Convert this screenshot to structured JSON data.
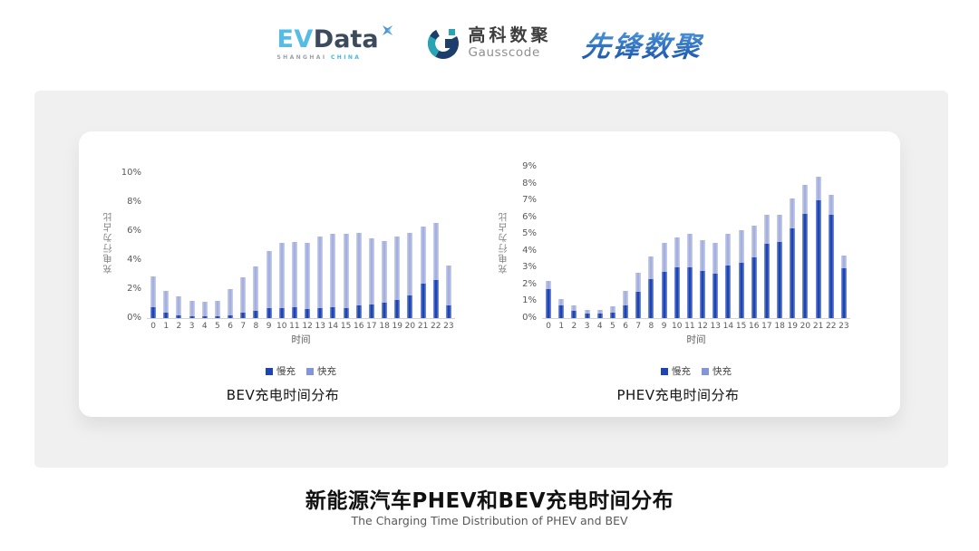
{
  "header": {
    "evdata_logo": {
      "ev": "EV",
      "data": "Data",
      "shanghai": "SHANGHAI",
      "china": "CHINA"
    },
    "gausscode_logo": {
      "name_cn": "高科数聚",
      "name_en": "Gausscode"
    },
    "xianfeng_logo": {
      "text": "先锋数聚"
    }
  },
  "chart_data": [
    {
      "type": "bar",
      "stacked": true,
      "title": "BEV充电时间分布",
      "xlabel": "时间",
      "ylabel": "充电行为占比",
      "ylim": [
        0,
        10
      ],
      "yticks": [
        "0%",
        "2%",
        "4%",
        "6%",
        "8%",
        "10%"
      ],
      "grid": false,
      "legend_position": "bottom",
      "categories": [
        0,
        1,
        2,
        3,
        4,
        5,
        6,
        7,
        8,
        9,
        10,
        11,
        12,
        13,
        14,
        15,
        16,
        17,
        18,
        19,
        20,
        21,
        22,
        23
      ],
      "series": [
        {
          "name": "慢充",
          "color": "#1c44b4",
          "swatch": "#1c44b4",
          "values": [
            0.75,
            0.35,
            0.2,
            0.15,
            0.1,
            0.15,
            0.2,
            0.35,
            0.5,
            0.7,
            0.7,
            0.75,
            0.65,
            0.7,
            0.75,
            0.7,
            0.85,
            0.95,
            1.05,
            1.25,
            1.55,
            2.35,
            2.65,
            0.9
          ]
        },
        {
          "name": "快充",
          "color": "#a5b0df",
          "swatch": "#8596d6",
          "values": [
            2.15,
            1.55,
            1.3,
            1.05,
            1.0,
            1.05,
            1.8,
            2.45,
            3.05,
            3.9,
            4.5,
            4.5,
            4.55,
            4.95,
            5.05,
            5.1,
            5.0,
            4.55,
            4.25,
            4.35,
            4.35,
            3.95,
            3.9,
            2.7
          ]
        }
      ]
    },
    {
      "type": "bar",
      "stacked": true,
      "title": "PHEV充电时间分布",
      "xlabel": "时间",
      "ylabel": "充电行为占比",
      "ylim": [
        0,
        9
      ],
      "yticks": [
        "0%",
        "1%",
        "2%",
        "3%",
        "4%",
        "5%",
        "6%",
        "7%",
        "8%",
        "9%"
      ],
      "grid": false,
      "legend_position": "bottom",
      "categories": [
        0,
        1,
        2,
        3,
        4,
        5,
        6,
        7,
        8,
        9,
        10,
        11,
        12,
        13,
        14,
        15,
        16,
        17,
        18,
        19,
        20,
        21,
        22,
        23
      ],
      "series": [
        {
          "name": "慢充",
          "color": "#1c44b4",
          "swatch": "#1c44b4",
          "values": [
            1.75,
            0.75,
            0.45,
            0.25,
            0.25,
            0.35,
            0.75,
            1.55,
            2.3,
            2.75,
            3.0,
            3.0,
            2.8,
            2.65,
            3.1,
            3.3,
            3.6,
            4.4,
            4.55,
            5.35,
            6.2,
            7.0,
            6.15,
            2.95
          ]
        },
        {
          "name": "快充",
          "color": "#a5b0df",
          "swatch": "#8596d6",
          "values": [
            0.45,
            0.4,
            0.3,
            0.25,
            0.25,
            0.35,
            0.85,
            1.15,
            1.35,
            1.75,
            1.8,
            2.0,
            1.85,
            1.85,
            1.9,
            1.95,
            1.9,
            1.75,
            1.6,
            1.75,
            1.75,
            1.4,
            1.2,
            0.75
          ]
        }
      ]
    }
  ],
  "footer": {
    "title": "新能源汽车PHEV和BEV充电时间分布",
    "subtitle": "The Charging Time Distribution of PHEV and BEV"
  },
  "colors": {
    "slow": "#1c44b4",
    "fast": "#a5b0df",
    "legend_fast": "#8596d6",
    "panel_bg": "#f0f0f0",
    "card_bg": "#ffffff"
  }
}
